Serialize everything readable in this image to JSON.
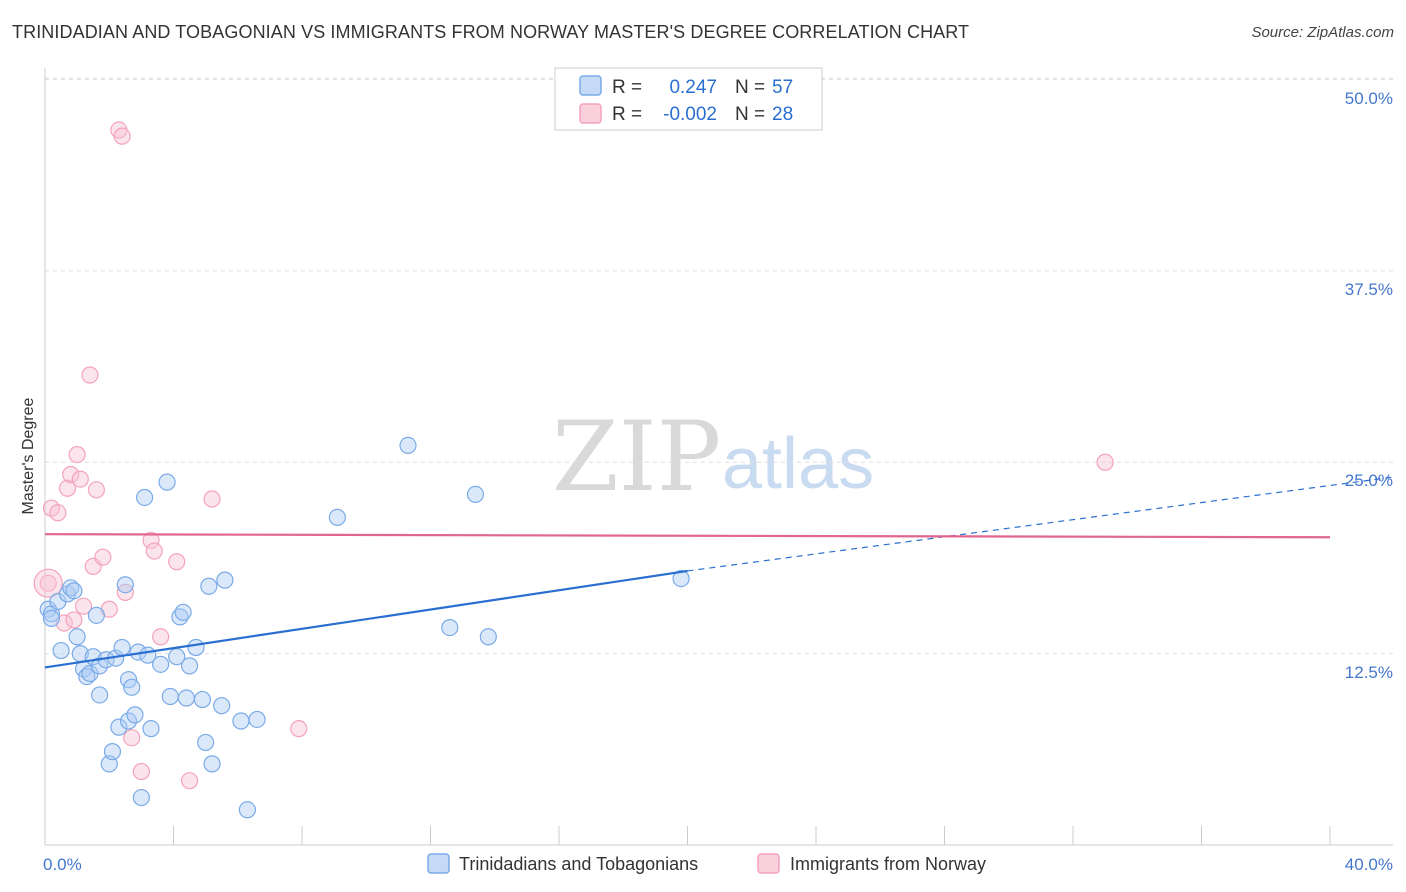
{
  "header": {
    "title": "TRINIDADIAN AND TOBAGONIAN VS IMMIGRANTS FROM NORWAY MASTER'S DEGREE CORRELATION CHART",
    "source": "Source: ZipAtlas.com"
  },
  "colors": {
    "blue": "#7aabe8",
    "blue_line": "#2a6fd0",
    "pink": "#f3a3bb",
    "pink_line": "#e0658f",
    "tick_text": "#4477cc"
  },
  "legend": {
    "r_label": "R =",
    "n_label": "N =",
    "blue_r": "0.247",
    "blue_n": "57",
    "pink_r": "-0.002",
    "pink_n": "28"
  },
  "watermark": {
    "zip": "ZIP",
    "atlas": "atlas"
  },
  "chart_data": {
    "type": "scatter",
    "title": "TRINIDADIAN AND TOBAGONIAN VS IMMIGRANTS FROM NORWAY MASTER'S DEGREE CORRELATION CHART",
    "xlabel": "",
    "ylabel": "Master's Degree",
    "xlim": [
      0,
      40
    ],
    "ylim": [
      0,
      52.5
    ],
    "x_tick_labels": [
      "0.0%",
      "40.0%"
    ],
    "y_ticks": [
      12.5,
      25.0,
      37.5,
      50.0
    ],
    "y_tick_labels": [
      "12.5%",
      "25.0%",
      "37.5%",
      "50.0%"
    ],
    "grid": true,
    "series": [
      {
        "name": "Trinidadians and Tobagonians",
        "color": "#7aabe8",
        "r": 0.247,
        "n": 57,
        "trend": {
          "x": [
            0,
            20
          ],
          "y": [
            11.6,
            17.9
          ],
          "dashed_to": [
            40,
            23.9
          ]
        },
        "points": [
          [
            0.1,
            15.4
          ],
          [
            0.2,
            15.1
          ],
          [
            0.2,
            14.8
          ],
          [
            0.4,
            15.9
          ],
          [
            0.5,
            12.7
          ],
          [
            0.7,
            16.4
          ],
          [
            0.8,
            16.8
          ],
          [
            0.9,
            16.6
          ],
          [
            1.0,
            13.6
          ],
          [
            1.1,
            12.5
          ],
          [
            1.2,
            11.5
          ],
          [
            1.3,
            11.0
          ],
          [
            1.4,
            11.2
          ],
          [
            1.5,
            12.3
          ],
          [
            1.6,
            15.0
          ],
          [
            1.7,
            11.7
          ],
          [
            1.7,
            9.8
          ],
          [
            1.9,
            12.1
          ],
          [
            2.0,
            5.3
          ],
          [
            2.1,
            6.1
          ],
          [
            2.2,
            12.2
          ],
          [
            2.3,
            7.7
          ],
          [
            2.4,
            12.9
          ],
          [
            2.5,
            17.0
          ],
          [
            2.6,
            8.1
          ],
          [
            2.6,
            10.8
          ],
          [
            2.7,
            10.3
          ],
          [
            2.8,
            8.5
          ],
          [
            2.9,
            12.6
          ],
          [
            3.0,
            3.1
          ],
          [
            3.1,
            22.7
          ],
          [
            3.2,
            12.4
          ],
          [
            3.3,
            7.6
          ],
          [
            3.6,
            11.8
          ],
          [
            3.8,
            23.7
          ],
          [
            3.9,
            9.7
          ],
          [
            4.1,
            12.3
          ],
          [
            4.2,
            14.9
          ],
          [
            4.3,
            15.2
          ],
          [
            4.4,
            9.6
          ],
          [
            4.5,
            11.7
          ],
          [
            4.7,
            12.9
          ],
          [
            4.9,
            9.5
          ],
          [
            5.0,
            6.7
          ],
          [
            5.1,
            16.9
          ],
          [
            5.2,
            5.3
          ],
          [
            5.5,
            9.1
          ],
          [
            5.6,
            17.3
          ],
          [
            6.1,
            8.1
          ],
          [
            6.3,
            2.3
          ],
          [
            6.6,
            8.2
          ],
          [
            9.1,
            21.4
          ],
          [
            11.3,
            26.1
          ],
          [
            12.6,
            14.2
          ],
          [
            13.4,
            22.9
          ],
          [
            13.8,
            13.6
          ],
          [
            19.8,
            17.4
          ]
        ]
      },
      {
        "name": "Immigrants from Norway",
        "color": "#f3a3bb",
        "r": -0.002,
        "n": 28,
        "trend": {
          "x": [
            0,
            40
          ],
          "y": [
            20.3,
            20.1
          ]
        },
        "points": [
          [
            0.1,
            17.1
          ],
          [
            0.2,
            22.0
          ],
          [
            0.4,
            21.7
          ],
          [
            0.6,
            14.5
          ],
          [
            0.7,
            23.3
          ],
          [
            0.8,
            24.2
          ],
          [
            0.9,
            14.7
          ],
          [
            1.0,
            25.5
          ],
          [
            1.1,
            23.9
          ],
          [
            1.2,
            15.6
          ],
          [
            1.4,
            30.7
          ],
          [
            1.5,
            18.2
          ],
          [
            1.6,
            23.2
          ],
          [
            1.8,
            18.8
          ],
          [
            2.0,
            15.4
          ],
          [
            2.3,
            46.7
          ],
          [
            2.4,
            46.3
          ],
          [
            2.5,
            16.5
          ],
          [
            2.7,
            7.0
          ],
          [
            3.0,
            4.8
          ],
          [
            3.3,
            19.9
          ],
          [
            3.4,
            19.2
          ],
          [
            3.6,
            13.6
          ],
          [
            4.1,
            18.5
          ],
          [
            4.5,
            4.2
          ],
          [
            5.2,
            22.6
          ],
          [
            7.9,
            7.6
          ],
          [
            33.0,
            25.0
          ]
        ]
      }
    ]
  }
}
